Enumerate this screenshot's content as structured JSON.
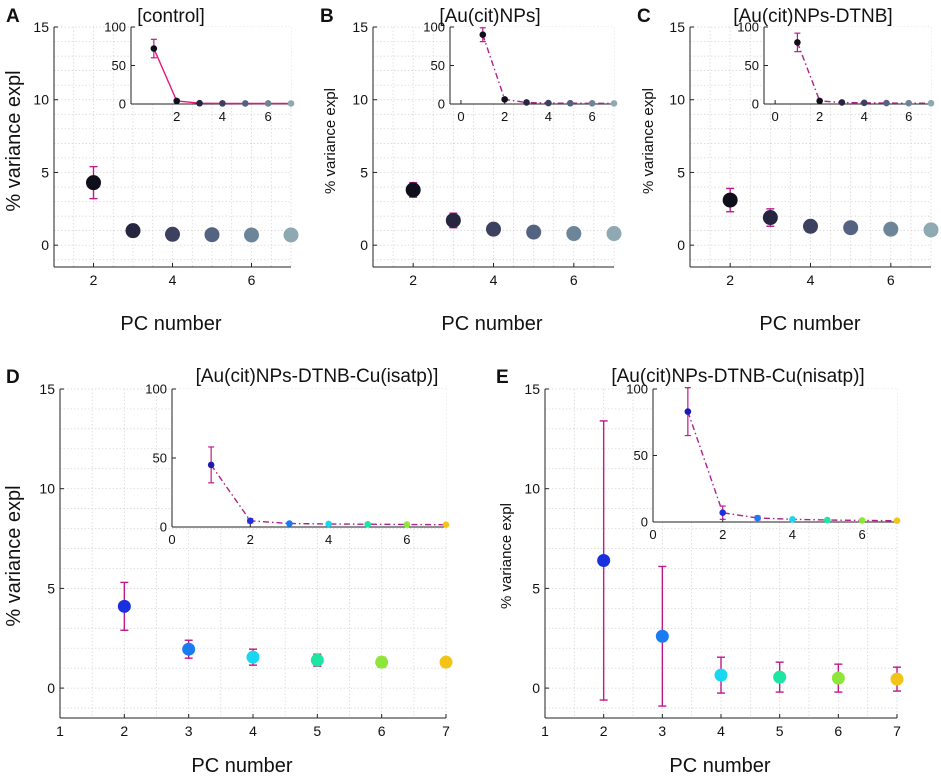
{
  "chart_data": [
    {
      "panel_letter": "A",
      "type": "scatter",
      "title": "[control]",
      "xlabel": "PC number",
      "ylabel": "% variance expl",
      "xlim": [
        1,
        7
      ],
      "ylim": [
        -1.5,
        15
      ],
      "xticks": [
        2,
        4,
        6
      ],
      "yticks": [
        0,
        5,
        10,
        15
      ],
      "grid": true,
      "marker_size": "large",
      "points": [
        {
          "x": 2,
          "y": 4.3,
          "err": 1.1,
          "color": "#0f0f1c"
        },
        {
          "x": 3,
          "y": 1.0,
          "err": 0.4,
          "color": "#262640"
        },
        {
          "x": 4,
          "y": 0.75,
          "err": 0,
          "color": "#3c4160"
        },
        {
          "x": 5,
          "y": 0.72,
          "err": 0,
          "color": "#556382"
        },
        {
          "x": 6,
          "y": 0.7,
          "err": 0,
          "color": "#6c8599"
        },
        {
          "x": 7,
          "y": 0.7,
          "err": 0,
          "color": "#8ea9b2"
        }
      ],
      "inset": {
        "xlim": [
          0,
          7
        ],
        "ylim": [
          0,
          100
        ],
        "xticks": [
          2,
          4,
          6
        ],
        "yticks": [
          0,
          50,
          100
        ],
        "line_style": "solid",
        "line_color": "#e8137c",
        "points": [
          {
            "x": 1,
            "y": 72,
            "err": 12
          },
          {
            "x": 2,
            "y": 4,
            "err": 1.5
          },
          {
            "x": 3,
            "y": 1,
            "err": 0
          },
          {
            "x": 4,
            "y": 0.8,
            "err": 0
          },
          {
            "x": 5,
            "y": 0.7,
            "err": 0
          },
          {
            "x": 6,
            "y": 0.7,
            "err": 0
          },
          {
            "x": 7,
            "y": 0.7,
            "err": 0
          }
        ]
      }
    },
    {
      "panel_letter": "B",
      "type": "scatter",
      "title": "[Au(cit)NPs]",
      "xlabel": "PC number",
      "ylabel": "% variance expl",
      "xlim": [
        1,
        7
      ],
      "ylim": [
        -1.5,
        15
      ],
      "xticks": [
        2,
        4,
        6
      ],
      "yticks": [
        0,
        5,
        10,
        15
      ],
      "grid": true,
      "marker_size": "large",
      "points": [
        {
          "x": 2,
          "y": 3.8,
          "err": 0.5,
          "color": "#0f0f1c"
        },
        {
          "x": 3,
          "y": 1.7,
          "err": 0.5,
          "color": "#262640"
        },
        {
          "x": 4,
          "y": 1.1,
          "err": 0,
          "color": "#3c4160"
        },
        {
          "x": 5,
          "y": 0.9,
          "err": 0,
          "color": "#556382"
        },
        {
          "x": 6,
          "y": 0.8,
          "err": 0,
          "color": "#6c8599"
        },
        {
          "x": 7,
          "y": 0.8,
          "err": 0,
          "color": "#8ea9b2"
        }
      ],
      "inset": {
        "xlim": [
          -0.5,
          7
        ],
        "ylim": [
          0,
          100
        ],
        "xticks": [
          0,
          2,
          4,
          6
        ],
        "yticks": [
          0,
          50,
          100
        ],
        "line_style": "dashdot",
        "line_color": "#b0208a",
        "points": [
          {
            "x": 1,
            "y": 90,
            "err": 9
          },
          {
            "x": 2,
            "y": 6,
            "err": 1.5
          },
          {
            "x": 3,
            "y": 2,
            "err": 0
          },
          {
            "x": 4,
            "y": 1.2,
            "err": 0
          },
          {
            "x": 5,
            "y": 1,
            "err": 0
          },
          {
            "x": 6,
            "y": 0.9,
            "err": 0
          },
          {
            "x": 7,
            "y": 0.8,
            "err": 0
          }
        ]
      }
    },
    {
      "panel_letter": "C",
      "type": "scatter",
      "title": "[Au(cit)NPs-DTNB]",
      "xlabel": "PC number",
      "ylabel": "% variance expl",
      "xlim": [
        1,
        7
      ],
      "ylim": [
        -1.5,
        15
      ],
      "xticks": [
        2,
        4,
        6
      ],
      "yticks": [
        0,
        5,
        10,
        15
      ],
      "grid": true,
      "marker_size": "large",
      "points": [
        {
          "x": 2,
          "y": 3.1,
          "err": 0.8,
          "color": "#0f0f1c"
        },
        {
          "x": 3,
          "y": 1.9,
          "err": 0.6,
          "color": "#262640"
        },
        {
          "x": 4,
          "y": 1.3,
          "err": 0,
          "color": "#3c4160"
        },
        {
          "x": 5,
          "y": 1.2,
          "err": 0,
          "color": "#556382"
        },
        {
          "x": 6,
          "y": 1.1,
          "err": 0,
          "color": "#6c8599"
        },
        {
          "x": 7,
          "y": 1.05,
          "err": 0,
          "color": "#8ea9b2"
        }
      ],
      "inset": {
        "xlim": [
          -0.5,
          7
        ],
        "ylim": [
          0,
          100
        ],
        "xticks": [
          0,
          2,
          4,
          6
        ],
        "yticks": [
          0,
          50,
          100
        ],
        "line_style": "dashdot",
        "line_color": "#b0208a",
        "points": [
          {
            "x": 1,
            "y": 80,
            "err": 12
          },
          {
            "x": 2,
            "y": 4,
            "err": 1
          },
          {
            "x": 3,
            "y": 2,
            "err": 0
          },
          {
            "x": 4,
            "y": 1.5,
            "err": 0
          },
          {
            "x": 5,
            "y": 1.2,
            "err": 0
          },
          {
            "x": 6,
            "y": 1.1,
            "err": 0
          },
          {
            "x": 7,
            "y": 1,
            "err": 0
          }
        ]
      }
    },
    {
      "panel_letter": "D",
      "type": "scatter",
      "title": "[Au(cit)NPs-DTNB-Cu(isatp)]",
      "xlabel": "PC number",
      "ylabel": "% variance expl",
      "xlim": [
        1,
        7
      ],
      "ylim": [
        -1.5,
        15
      ],
      "xticks": [
        1,
        2,
        3,
        4,
        5,
        6,
        7
      ],
      "yticks": [
        0,
        5,
        10,
        15
      ],
      "grid": true,
      "marker_size": "medium",
      "points": [
        {
          "x": 2,
          "y": 4.1,
          "err": 1.2,
          "color": "#1a2fe0"
        },
        {
          "x": 3,
          "y": 1.95,
          "err": 0.45,
          "color": "#1a7cf2"
        },
        {
          "x": 4,
          "y": 1.55,
          "err": 0.4,
          "color": "#18d8f0"
        },
        {
          "x": 5,
          "y": 1.4,
          "err": 0.3,
          "color": "#1ce6a2"
        },
        {
          "x": 6,
          "y": 1.3,
          "err": 0.25,
          "color": "#8ee63a"
        },
        {
          "x": 7,
          "y": 1.3,
          "err": 0.2,
          "color": "#f2c418"
        }
      ],
      "inset": {
        "xlim": [
          0,
          7
        ],
        "ylim": [
          0,
          100
        ],
        "xticks": [
          0,
          2,
          4,
          6
        ],
        "yticks": [
          0,
          50,
          100
        ],
        "line_style": "dashdot",
        "line_color": "#b0208a",
        "points": [
          {
            "x": 1,
            "y": 45,
            "err": 13
          },
          {
            "x": 2,
            "y": 4.5,
            "err": 1.5
          },
          {
            "x": 3,
            "y": 2.5,
            "err": 0
          },
          {
            "x": 4,
            "y": 2.2,
            "err": 0
          },
          {
            "x": 5,
            "y": 2,
            "err": 0
          },
          {
            "x": 6,
            "y": 1.8,
            "err": 0
          },
          {
            "x": 7,
            "y": 1.7,
            "err": 0
          }
        ]
      }
    },
    {
      "panel_letter": "E",
      "type": "scatter",
      "title": "[Au(cit)NPs-DTNB-Cu(nisatp)]",
      "xlabel": "PC number",
      "ylabel": "% variance expl",
      "xlim": [
        1,
        7
      ],
      "ylim": [
        -1.5,
        15
      ],
      "xticks": [
        1,
        2,
        3,
        4,
        5,
        6,
        7
      ],
      "yticks": [
        0,
        5,
        10,
        15
      ],
      "grid": true,
      "marker_size": "medium",
      "points": [
        {
          "x": 2,
          "y": 6.4,
          "err": 7.0,
          "color": "#1a2fe0"
        },
        {
          "x": 3,
          "y": 2.6,
          "err": 3.5,
          "color": "#1a7cf2"
        },
        {
          "x": 4,
          "y": 0.65,
          "err": 0.9,
          "color": "#18d8f0"
        },
        {
          "x": 5,
          "y": 0.55,
          "err": 0.75,
          "color": "#1ce6a2"
        },
        {
          "x": 6,
          "y": 0.5,
          "err": 0.7,
          "color": "#8ee63a"
        },
        {
          "x": 7,
          "y": 0.45,
          "err": 0.6,
          "color": "#f2c418"
        }
      ],
      "inset": {
        "xlim": [
          0,
          7
        ],
        "ylim": [
          0,
          100
        ],
        "xticks": [
          0,
          2,
          4,
          6
        ],
        "yticks": [
          0,
          50,
          100
        ],
        "line_style": "dashdot",
        "line_color": "#b0208a",
        "points": [
          {
            "x": 1,
            "y": 83,
            "err": 18
          },
          {
            "x": 2,
            "y": 7,
            "err": 5
          },
          {
            "x": 3,
            "y": 3,
            "err": 1.5
          },
          {
            "x": 4,
            "y": 2,
            "err": 0
          },
          {
            "x": 5,
            "y": 1.5,
            "err": 0
          },
          {
            "x": 6,
            "y": 1.2,
            "err": 0
          },
          {
            "x": 7,
            "y": 1,
            "err": 0
          }
        ]
      }
    }
  ]
}
